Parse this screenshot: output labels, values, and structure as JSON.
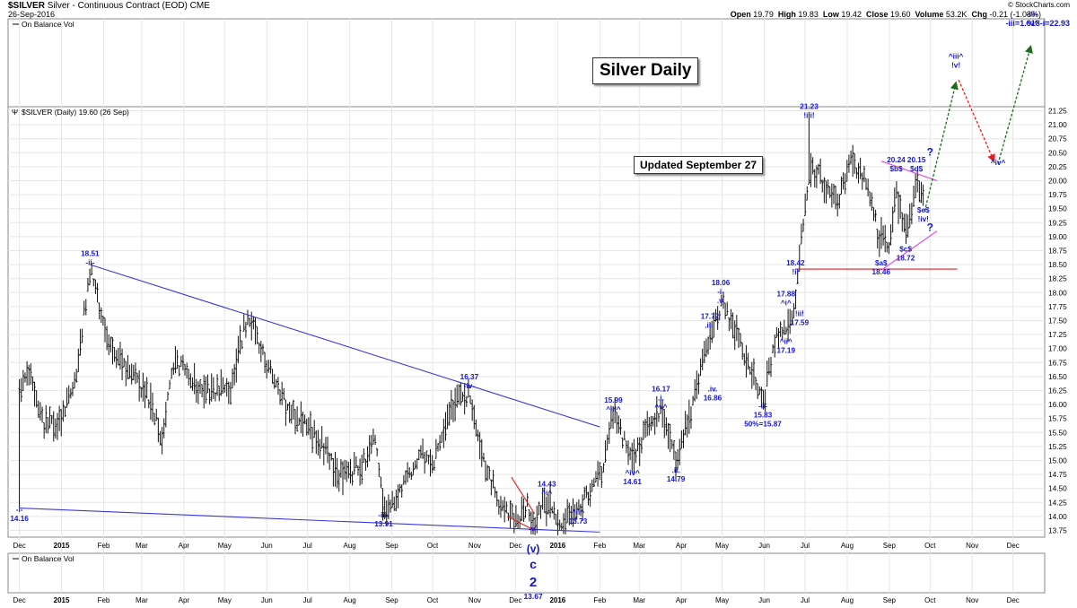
{
  "header": {
    "symbol": "$SILVER",
    "description": "Silver - Continuous Contract (EOD)",
    "exchange": "CME",
    "date": "26-Sep-2016",
    "brand": "© StockCharts.com",
    "open_label": "Open",
    "open": "19.79",
    "high_label": "High",
    "high": "19.83",
    "low_label": "Low",
    "low": "19.42",
    "close_label": "Close",
    "close": "19.60",
    "volume_label": "Volume",
    "volume": "53.2K",
    "chg_label": "Chg",
    "chg": "-0.21 (-1.08%)",
    "top_right_note": "-iii=1.618-i=22.93"
  },
  "panels": {
    "obv_top": "On Balance Vol",
    "price_legend": "$SILVER (Daily) 19.60 (26 Sep)",
    "obv_bottom": "On Balance Vol"
  },
  "boxes": {
    "title": "Silver Daily",
    "updated": "Updated September 27"
  },
  "colors": {
    "wave_label": "#1515d0",
    "trendline_blue": "#3a3adc",
    "line_red": "#e02020",
    "line_magenta": "#e040e0",
    "arrow_green": "#1a6e1a",
    "arrow_red": "#e02020",
    "bars": "#111111"
  },
  "chart_data": {
    "type": "ohlc",
    "y_axis_ticks": [
      "21.25",
      "21.00",
      "20.75",
      "20.50",
      "20.25",
      "20.00",
      "19.75",
      "19.50",
      "19.25",
      "19.00",
      "18.75",
      "18.50",
      "18.25",
      "18.00",
      "17.75",
      "17.50",
      "17.25",
      "17.00",
      "16.75",
      "16.50",
      "16.25",
      "16.00",
      "15.75",
      "15.50",
      "15.25",
      "15.00",
      "14.75",
      "14.50",
      "14.25",
      "14.00",
      "13.75"
    ],
    "ylim": [
      13.75,
      21.25
    ],
    "x_axis_ticks": [
      "Dec",
      "2015",
      "Feb",
      "Mar",
      "Apr",
      "May",
      "Jun",
      "Jul",
      "Aug",
      "Sep",
      "Oct",
      "Nov",
      "Dec",
      "2016",
      "Feb",
      "Mar",
      "Apr",
      "May",
      "Jun",
      "Jul",
      "Aug",
      "Sep",
      "Oct",
      "Nov",
      "Dec"
    ],
    "x_axis_ticks_bold": [
      "2015",
      "2016"
    ],
    "price_waypoints": [
      {
        "t": "2014-12-01",
        "v": 16.3
      },
      {
        "t": "2014-12-09",
        "v": 16.6
      },
      {
        "t": "2014-12-15",
        "v": 16.0
      },
      {
        "t": "2014-12-19",
        "v": 15.6
      },
      {
        "t": "2014-12-22",
        "v": 15.7
      },
      {
        "t": "2014-12-31",
        "v": 15.6
      },
      {
        "t": "2015-01-12",
        "v": 16.6
      },
      {
        "t": "2015-01-22",
        "v": 18.4
      },
      {
        "t": "2015-02-06",
        "v": 17.0
      },
      {
        "t": "2015-02-20",
        "v": 16.6
      },
      {
        "t": "2015-03-05",
        "v": 16.2
      },
      {
        "t": "2015-03-16",
        "v": 15.4
      },
      {
        "t": "2015-03-25",
        "v": 16.8
      },
      {
        "t": "2015-04-15",
        "v": 16.2
      },
      {
        "t": "2015-05-05",
        "v": 16.3
      },
      {
        "t": "2015-05-18",
        "v": 17.6
      },
      {
        "t": "2015-06-01",
        "v": 16.7
      },
      {
        "t": "2015-06-15",
        "v": 16.0
      },
      {
        "t": "2015-07-06",
        "v": 15.5
      },
      {
        "t": "2015-07-24",
        "v": 14.7
      },
      {
        "t": "2015-08-10",
        "v": 14.9
      },
      {
        "t": "2015-08-20",
        "v": 15.5
      },
      {
        "t": "2015-08-26",
        "v": 14.0
      },
      {
        "t": "2015-09-10",
        "v": 14.6
      },
      {
        "t": "2015-09-22",
        "v": 15.1
      },
      {
        "t": "2015-10-01",
        "v": 14.9
      },
      {
        "t": "2015-10-16",
        "v": 16.0
      },
      {
        "t": "2015-10-28",
        "v": 16.2
      },
      {
        "t": "2015-11-10",
        "v": 14.8
      },
      {
        "t": "2015-11-20",
        "v": 14.2
      },
      {
        "t": "2015-12-03",
        "v": 13.9
      },
      {
        "t": "2015-12-10",
        "v": 14.2
      },
      {
        "t": "2015-12-14",
        "v": 13.8
      },
      {
        "t": "2015-12-22",
        "v": 14.3
      },
      {
        "t": "2016-01-05",
        "v": 13.9
      },
      {
        "t": "2016-01-19",
        "v": 14.2
      },
      {
        "t": "2016-02-02",
        "v": 14.8
      },
      {
        "t": "2016-02-11",
        "v": 15.8
      },
      {
        "t": "2016-02-25",
        "v": 15.0
      },
      {
        "t": "2016-03-08",
        "v": 15.6
      },
      {
        "t": "2016-03-17",
        "v": 15.9
      },
      {
        "t": "2016-03-28",
        "v": 15.0
      },
      {
        "t": "2016-04-11",
        "v": 16.1
      },
      {
        "t": "2016-04-22",
        "v": 17.3
      },
      {
        "t": "2016-05-02",
        "v": 17.8
      },
      {
        "t": "2016-05-16",
        "v": 17.0
      },
      {
        "t": "2016-05-31",
        "v": 16.0
      },
      {
        "t": "2016-06-10",
        "v": 17.3
      },
      {
        "t": "2016-06-17",
        "v": 17.3
      },
      {
        "t": "2016-06-24",
        "v": 17.8
      },
      {
        "t": "2016-07-01",
        "v": 19.6
      },
      {
        "t": "2016-07-05",
        "v": 20.3
      },
      {
        "t": "2016-07-14",
        "v": 20.0
      },
      {
        "t": "2016-07-25",
        "v": 19.6
      },
      {
        "t": "2016-08-04",
        "v": 20.4
      },
      {
        "t": "2016-08-15",
        "v": 20.0
      },
      {
        "t": "2016-08-24",
        "v": 19.0
      },
      {
        "t": "2016-09-01",
        "v": 18.8
      },
      {
        "t": "2016-09-06",
        "v": 19.8
      },
      {
        "t": "2016-09-14",
        "v": 19.0
      },
      {
        "t": "2016-09-21",
        "v": 20.0
      },
      {
        "t": "2016-09-26",
        "v": 19.6
      }
    ],
    "spikes": [
      {
        "t": "2014-12-01",
        "low": 14.16
      },
      {
        "t": "2016-07-04",
        "high": 21.23
      }
    ],
    "annotations": [
      {
        "t": "2014-12-01",
        "v": 14.05,
        "lines": [
          "-i-",
          "14.16"
        ]
      },
      {
        "t": "2015-01-22",
        "v": 18.62,
        "lines": [
          "18.51",
          "-ii-"
        ]
      },
      {
        "t": "2015-08-26",
        "v": 13.95,
        "lines": [
          "-iii-",
          "13.91"
        ]
      },
      {
        "t": "2015-10-28",
        "v": 16.42,
        "lines": [
          "16.37",
          "-iv-"
        ]
      },
      {
        "t": "2015-12-14",
        "v": 13.7,
        "lines": [
          "-v-"
        ]
      },
      {
        "t": "2015-12-24",
        "v": 14.5,
        "lines": [
          "14.43",
          "^i^"
        ]
      },
      {
        "t": "2016-01-16",
        "v": 14.0,
        "lines": [
          "^ii^",
          "13.73"
        ]
      },
      {
        "t": "2016-02-11",
        "v": 16.0,
        "lines": [
          "15.99",
          "^iii^"
        ]
      },
      {
        "t": "2016-02-25",
        "v": 14.7,
        "lines": [
          "^iv^",
          "14.61"
        ]
      },
      {
        "t": "2016-03-17",
        "v": 16.2,
        "lines": [
          "16.17",
          ".i.",
          "^v^"
        ]
      },
      {
        "t": "2016-03-28",
        "v": 14.75,
        "lines": [
          ".ii.",
          "14.79"
        ]
      },
      {
        "t": "2016-04-22",
        "v": 17.5,
        "lines": [
          "17.72",
          ".iii."
        ]
      },
      {
        "t": "2016-04-30",
        "v": 18.1,
        "lines": [
          "18.06",
          "-i-",
          ".v."
        ]
      },
      {
        "t": "2016-04-24",
        "v": 16.2,
        "lines": [
          ".iv.",
          "16.86"
        ]
      },
      {
        "t": "2016-05-31",
        "v": 15.9,
        "lines": [
          "-ii-",
          "15.83",
          "50%=15.87"
        ]
      },
      {
        "t": "2016-06-17",
        "v": 17.9,
        "lines": [
          "17.88",
          "^i^"
        ]
      },
      {
        "t": "2016-06-17",
        "v": 17.05,
        "lines": [
          "^ii^",
          "17.19"
        ]
      },
      {
        "t": "2016-06-24",
        "v": 18.45,
        "lines": [
          "18.42",
          "!i!"
        ]
      },
      {
        "t": "2016-06-27",
        "v": 17.55,
        "lines": [
          "!ii!",
          "17.59"
        ]
      },
      {
        "t": "2016-07-04",
        "v": 21.25,
        "lines": [
          "21.23",
          "!iii!"
        ]
      },
      {
        "t": "2016-08-26",
        "v": 18.45,
        "lines": [
          "$a$",
          "18.46"
        ]
      },
      {
        "t": "2016-09-06",
        "v": 20.3,
        "lines": [
          "20.24",
          "$b$"
        ]
      },
      {
        "t": "2016-09-13",
        "v": 18.7,
        "lines": [
          "$c$",
          "18.72"
        ]
      },
      {
        "t": "2016-09-21",
        "v": 20.3,
        "lines": [
          "20.15",
          "$d$"
        ]
      },
      {
        "t": "2016-09-26",
        "v": 19.4,
        "lines": [
          "$e$",
          "!iv!"
        ]
      },
      {
        "t": "2016-10-20",
        "v": 22.15,
        "lines": [
          "^iii^",
          "!v!"
        ]
      },
      {
        "t": "2016-11-20",
        "v": 20.25,
        "lines": [
          "^iv^"
        ]
      },
      {
        "t": "2016-12-15",
        "v": 22.9,
        "lines": [
          "-iii-",
          "^v^"
        ]
      }
    ],
    "below_labels": {
      "t": "2015-12-14",
      "lines": [
        "(v)",
        "c",
        "2",
        "13.67"
      ]
    },
    "question_marks": [
      {
        "t": "2016-10-01",
        "v": 20.45,
        "text": "?"
      },
      {
        "t": "2016-10-01",
        "v": 19.1,
        "text": "?"
      }
    ],
    "lines": [
      {
        "kind": "blue",
        "from": {
          "t": "2015-01-22",
          "v": 18.5
        },
        "to": {
          "t": "2016-02-01",
          "v": 15.6
        }
      },
      {
        "kind": "blue",
        "from": {
          "t": "2014-12-01",
          "v": 14.15
        },
        "to": {
          "t": "2016-02-01",
          "v": 13.72
        }
      },
      {
        "kind": "red",
        "from": {
          "t": "2016-06-24",
          "v": 18.42
        },
        "to": {
          "t": "2016-10-21",
          "v": 18.42
        }
      },
      {
        "kind": "red",
        "from": {
          "t": "2015-11-25",
          "v": 14.0
        },
        "to": {
          "t": "2015-12-15",
          "v": 13.75
        }
      },
      {
        "kind": "red",
        "from": {
          "t": "2015-11-28",
          "v": 14.7
        },
        "to": {
          "t": "2015-12-15",
          "v": 14.05
        }
      },
      {
        "kind": "magenta",
        "from": {
          "t": "2016-08-26",
          "v": 20.35
        },
        "to": {
          "t": "2016-10-06",
          "v": 20.0
        }
      },
      {
        "kind": "magenta",
        "from": {
          "t": "2016-08-26",
          "v": 18.4
        },
        "to": {
          "t": "2016-10-06",
          "v": 19.1
        }
      }
    ],
    "arrows": [
      {
        "kind": "green",
        "from": {
          "t": "2016-09-27",
          "v": 19.45
        },
        "to": {
          "t": "2016-10-20",
          "v": 21.75
        }
      },
      {
        "kind": "red",
        "from": {
          "t": "2016-10-22",
          "v": 21.8
        },
        "to": {
          "t": "2016-11-17",
          "v": 20.35
        }
      },
      {
        "kind": "green",
        "from": {
          "t": "2016-11-20",
          "v": 20.3
        },
        "to": {
          "t": "2016-12-14",
          "v": 22.4
        }
      }
    ],
    "grid": true,
    "legend": "top-left"
  }
}
